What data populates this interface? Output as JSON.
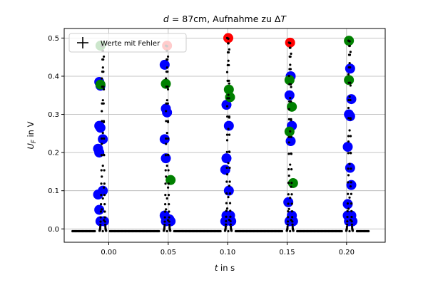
{
  "chart_data": {
    "type": "scatter",
    "title": "d = 87cm, Aufnahme zu ΔT",
    "title_parts": {
      "var": "d",
      "rest": " = 87cm, Aufnahme zu Δ",
      "var2": "T"
    },
    "xlabel": "t in s",
    "xlabel_parts": {
      "var": "t",
      "rest": " in s"
    },
    "ylabel": "U_F in V",
    "ylabel_parts": {
      "var": "U",
      "sub": "F",
      "rest": " in V"
    },
    "xlim": [
      -0.0375,
      0.2325
    ],
    "ylim": [
      -0.035,
      0.525
    ],
    "x_ticks": [
      0.0,
      0.05,
      0.1,
      0.15,
      0.2
    ],
    "x_tick_labels": [
      "0.00",
      "0.05",
      "0.10",
      "0.15",
      "0.20"
    ],
    "y_ticks": [
      0.0,
      0.1,
      0.2,
      0.3,
      0.4,
      0.5
    ],
    "y_tick_labels": [
      "0.0",
      "0.1",
      "0.2",
      "0.3",
      "0.4",
      "0.5"
    ],
    "grid": true,
    "legend": {
      "placement": "top-left",
      "entries": [
        {
          "marker": "plus",
          "label": "Werte mit Fehler"
        }
      ]
    },
    "colors": {
      "data": "#000000",
      "blue": "#0000ff",
      "green": "#008000",
      "red": "#ff0000",
      "grid": "#b0b0b0"
    },
    "peak_centers": [
      -0.005,
      0.049,
      0.1005,
      0.1525,
      0.2025
    ],
    "baseline": -0.006,
    "baseline_range": [
      -0.0305,
      0.219
    ],
    "series": [
      {
        "marker": "blue-circle",
        "points": [
          [
            -0.008,
            0.385
          ],
          [
            -0.007,
            0.375
          ],
          [
            -0.008,
            0.27
          ],
          [
            -0.007,
            0.265
          ],
          [
            -0.009,
            0.21
          ],
          [
            -0.008,
            0.2
          ],
          [
            -0.005,
            0.235
          ],
          [
            -0.009,
            0.09
          ],
          [
            -0.005,
            0.1
          ],
          [
            -0.008,
            0.05
          ],
          [
            -0.007,
            0.02
          ],
          [
            -0.004,
            0.02
          ],
          [
            0.047,
            0.43
          ],
          [
            0.048,
            0.315
          ],
          [
            0.049,
            0.305
          ],
          [
            0.047,
            0.235
          ],
          [
            0.048,
            0.185
          ],
          [
            0.047,
            0.035
          ],
          [
            0.051,
            0.025
          ],
          [
            0.048,
            0.02
          ],
          [
            0.052,
            0.02
          ],
          [
            0.099,
            0.325
          ],
          [
            0.101,
            0.27
          ],
          [
            0.099,
            0.185
          ],
          [
            0.098,
            0.155
          ],
          [
            0.101,
            0.1
          ],
          [
            0.099,
            0.035
          ],
          [
            0.102,
            0.035
          ],
          [
            0.098,
            0.02
          ],
          [
            0.103,
            0.02
          ],
          [
            0.153,
            0.4
          ],
          [
            0.152,
            0.35
          ],
          [
            0.154,
            0.27
          ],
          [
            0.153,
            0.23
          ],
          [
            0.151,
            0.07
          ],
          [
            0.154,
            0.035
          ],
          [
            0.152,
            0.02
          ],
          [
            0.155,
            0.02
          ],
          [
            0.203,
            0.42
          ],
          [
            0.204,
            0.34
          ],
          [
            0.202,
            0.3
          ],
          [
            0.203,
            0.295
          ],
          [
            0.201,
            0.215
          ],
          [
            0.203,
            0.16
          ],
          [
            0.204,
            0.115
          ],
          [
            0.201,
            0.065
          ],
          [
            0.201,
            0.035
          ],
          [
            0.204,
            0.035
          ],
          [
            0.202,
            0.02
          ],
          [
            0.205,
            0.02
          ]
        ]
      },
      {
        "marker": "green-circle",
        "points": [
          [
            -0.007,
            0.48
          ],
          [
            -0.007,
            0.378
          ],
          [
            0.048,
            0.38
          ],
          [
            0.052,
            0.128
          ],
          [
            0.101,
            0.365
          ],
          [
            0.102,
            0.345
          ],
          [
            0.152,
            0.39
          ],
          [
            0.154,
            0.32
          ],
          [
            0.152,
            0.255
          ],
          [
            0.155,
            0.12
          ],
          [
            0.202,
            0.493
          ],
          [
            0.202,
            0.39
          ]
        ]
      },
      {
        "marker": "red-circle",
        "points": [
          [
            0.049,
            0.48
          ],
          [
            0.1005,
            0.5
          ],
          [
            0.1525,
            0.488
          ]
        ]
      }
    ]
  }
}
